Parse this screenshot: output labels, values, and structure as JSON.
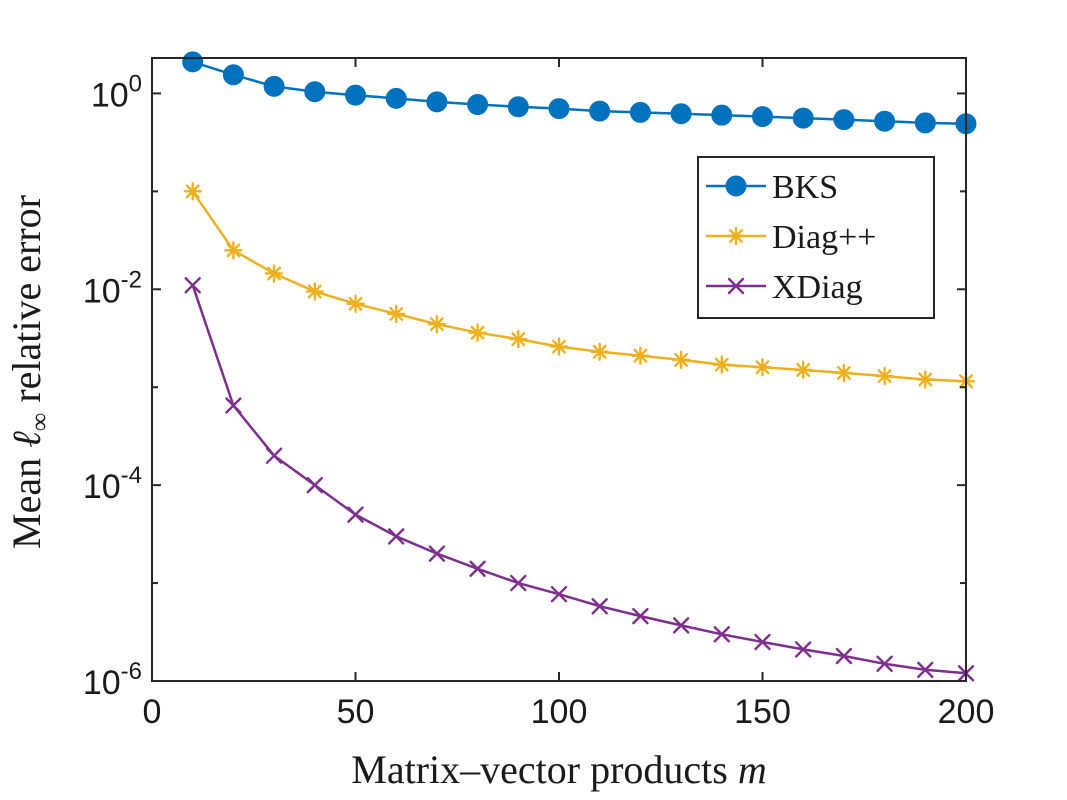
{
  "chart_data": {
    "type": "line",
    "yscale": "log",
    "xlabel_text": "Matrix–vector products",
    "xlabel_var": "m",
    "ylabel_pre": "Mean",
    "ylabel_sym": "ℓ",
    "ylabel_sub": "∞",
    "ylabel_post": "relative error",
    "xlim": [
      0,
      200
    ],
    "ylim": [
      1e-06,
      2.3
    ],
    "xticks": [
      0,
      50,
      100,
      150,
      200
    ],
    "yticks": [
      {
        "value": 1,
        "base": "10",
        "exp": "0"
      },
      {
        "value": 0.01,
        "base": "10",
        "exp": "-2"
      },
      {
        "value": 0.0001,
        "base": "10",
        "exp": "-4"
      },
      {
        "value": 1e-06,
        "base": "10",
        "exp": "-6"
      }
    ],
    "legend_position": "top-right",
    "x": [
      10,
      20,
      30,
      40,
      50,
      60,
      70,
      80,
      90,
      100,
      110,
      120,
      130,
      140,
      150,
      160,
      170,
      180,
      190,
      200
    ],
    "series": [
      {
        "name": "BKS",
        "color": "#0072BD",
        "marker": "circle",
        "values": [
          2.1,
          1.55,
          1.18,
          1.04,
          0.96,
          0.89,
          0.82,
          0.77,
          0.73,
          0.7,
          0.66,
          0.64,
          0.62,
          0.6,
          0.58,
          0.56,
          0.54,
          0.52,
          0.5,
          0.49
        ]
      },
      {
        "name": "Diag++",
        "color": "#EDB120",
        "marker": "asterisk",
        "values": [
          0.1,
          0.025,
          0.0145,
          0.0095,
          0.0071,
          0.0056,
          0.0044,
          0.0036,
          0.0031,
          0.0026,
          0.0023,
          0.0021,
          0.0019,
          0.0017,
          0.0016,
          0.0015,
          0.0014,
          0.0013,
          0.0012,
          0.00115
        ]
      },
      {
        "name": "XDiag",
        "color": "#7E2F8E",
        "marker": "x",
        "values": [
          0.011,
          0.00065,
          0.0002,
          0.0001,
          5e-05,
          3e-05,
          2e-05,
          1.4e-05,
          1e-05,
          7.7e-06,
          5.8e-06,
          4.6e-06,
          3.7e-06,
          3e-06,
          2.5e-06,
          2.1e-06,
          1.8e-06,
          1.5e-06,
          1.3e-06,
          1.2e-06
        ]
      }
    ]
  }
}
